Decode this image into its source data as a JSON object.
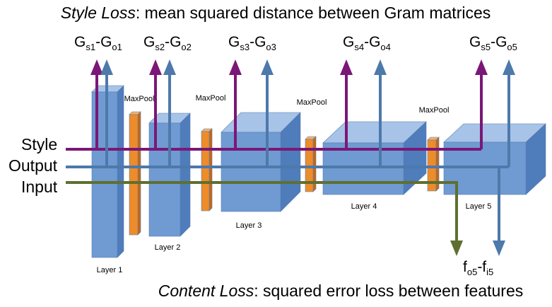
{
  "style_loss": {
    "term": "Style Loss",
    "rest": ": mean squared distance between Gram matrices"
  },
  "content_loss": {
    "term": "Content Loss",
    "rest": ": squared error loss between features"
  },
  "inputs": {
    "style": "Style",
    "output": "Output",
    "input": "Input"
  },
  "layers": [
    {
      "label": "Layer 1",
      "g_main": "G",
      "g_sub1": "s1",
      "g_mid": "-G",
      "g_sub2": "o1"
    },
    {
      "label": "Layer 2",
      "g_main": "G",
      "g_sub1": "s2",
      "g_mid": "-G",
      "g_sub2": "o2"
    },
    {
      "label": "Layer 3",
      "g_main": "G",
      "g_sub1": "s3",
      "g_mid": "-G",
      "g_sub2": "o3"
    },
    {
      "label": "Layer 4",
      "g_main": "G",
      "g_sub1": "s4",
      "g_mid": "-G",
      "g_sub2": "o4"
    },
    {
      "label": "Layer 5",
      "g_main": "G",
      "g_sub1": "s5",
      "g_mid": "-G",
      "g_sub2": "o5"
    }
  ],
  "maxpool_label": "MaxPool",
  "feature_diff": {
    "main": "f",
    "sub1": "o5",
    "mid": "-f",
    "sub2": "i5"
  },
  "colors": {
    "style_line": "#7b1777",
    "output_line": "#4d79ab",
    "input_line": "#5f6f30",
    "layer_front": "#6f9bd2",
    "layer_top": "#a7c3e8",
    "layer_side": "#4f7cba",
    "maxpool_front": "#ee8c2a",
    "maxpool_side": "#c46714"
  }
}
